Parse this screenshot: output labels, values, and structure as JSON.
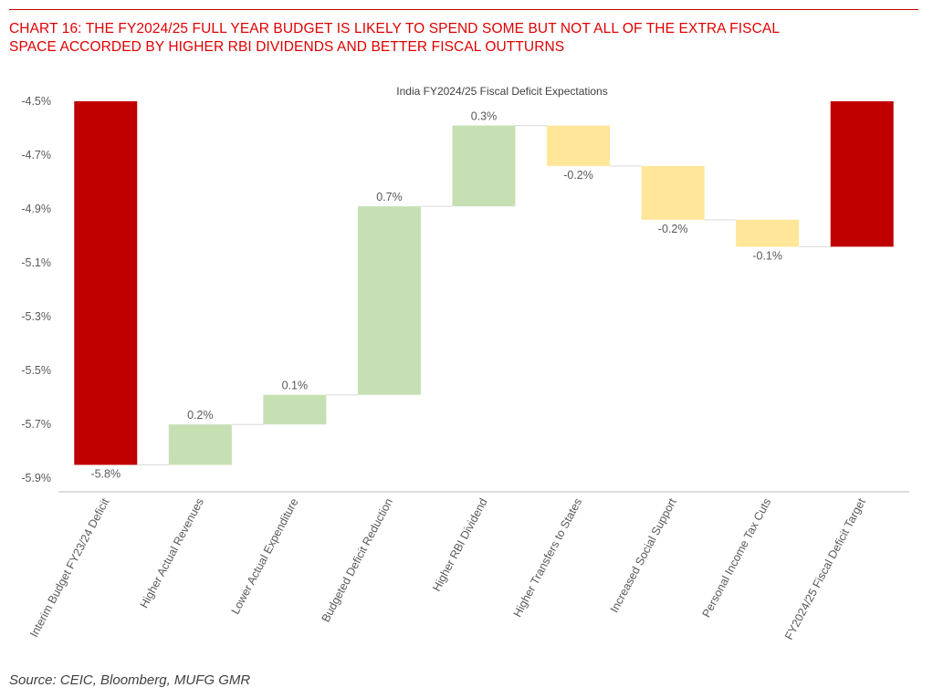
{
  "header": {
    "line1": "CHART 16: THE FY2024/25 FULL YEAR BUDGET IS LIKELY TO SPEND SOME BUT NOT ALL OF THE EXTRA FISCAL",
    "line2": "SPACE ACCORDED BY HIGHER RBI DIVIDENDS AND BETTER FISCAL OUTTURNS"
  },
  "source": "Source: CEIC, Bloomberg, MUFG GMR",
  "colors": {
    "total": "#c00000",
    "increase": "#c6e0b4",
    "decrease": "#ffe699",
    "axis": "#bfbfbf",
    "text": "#595959",
    "heading": "#e00000"
  },
  "chart_data": {
    "type": "waterfall",
    "title": "India FY2024/25 Fiscal Deficit Expectations",
    "xlabel": "",
    "ylabel": "",
    "ylim": [
      -5.95,
      -4.5
    ],
    "yticks": [
      -4.5,
      -4.7,
      -4.9,
      -5.1,
      -5.3,
      -5.5,
      -5.7,
      -5.9
    ],
    "ytick_labels": [
      "-4.5%",
      "-4.7%",
      "-4.9%",
      "-5.1%",
      "-5.3%",
      "-5.5%",
      "-5.7%",
      "-5.9%"
    ],
    "categories": [
      "Interim Budget FY23/24 Deficit",
      "Higher Actual Revenues",
      "Lower Actual Expenditure",
      "Budgeted Deficit Reduction",
      "Higher RBI Dividend",
      "Higher Transfers to States",
      "Increased Social Support",
      "Personal Income Tax Cuts",
      "FY2024/25 Fiscal Deficit Target"
    ],
    "bars": [
      {
        "kind": "total",
        "start": -4.5,
        "end": -5.85,
        "label": "-5.8%"
      },
      {
        "kind": "increase",
        "start": -5.85,
        "end": -5.7,
        "label": "0.2%"
      },
      {
        "kind": "increase",
        "start": -5.7,
        "end": -5.59,
        "label": "0.1%"
      },
      {
        "kind": "increase",
        "start": -5.59,
        "end": -4.89,
        "label": "0.7%"
      },
      {
        "kind": "increase",
        "start": -4.89,
        "end": -4.59,
        "label": "0.3%"
      },
      {
        "kind": "decrease",
        "start": -4.59,
        "end": -4.74,
        "label": "-0.2%"
      },
      {
        "kind": "decrease",
        "start": -4.74,
        "end": -4.94,
        "label": "-0.2%"
      },
      {
        "kind": "decrease",
        "start": -4.94,
        "end": -5.04,
        "label": "-0.1%"
      },
      {
        "kind": "total",
        "start": -4.5,
        "end": -5.04,
        "label": ""
      }
    ]
  }
}
